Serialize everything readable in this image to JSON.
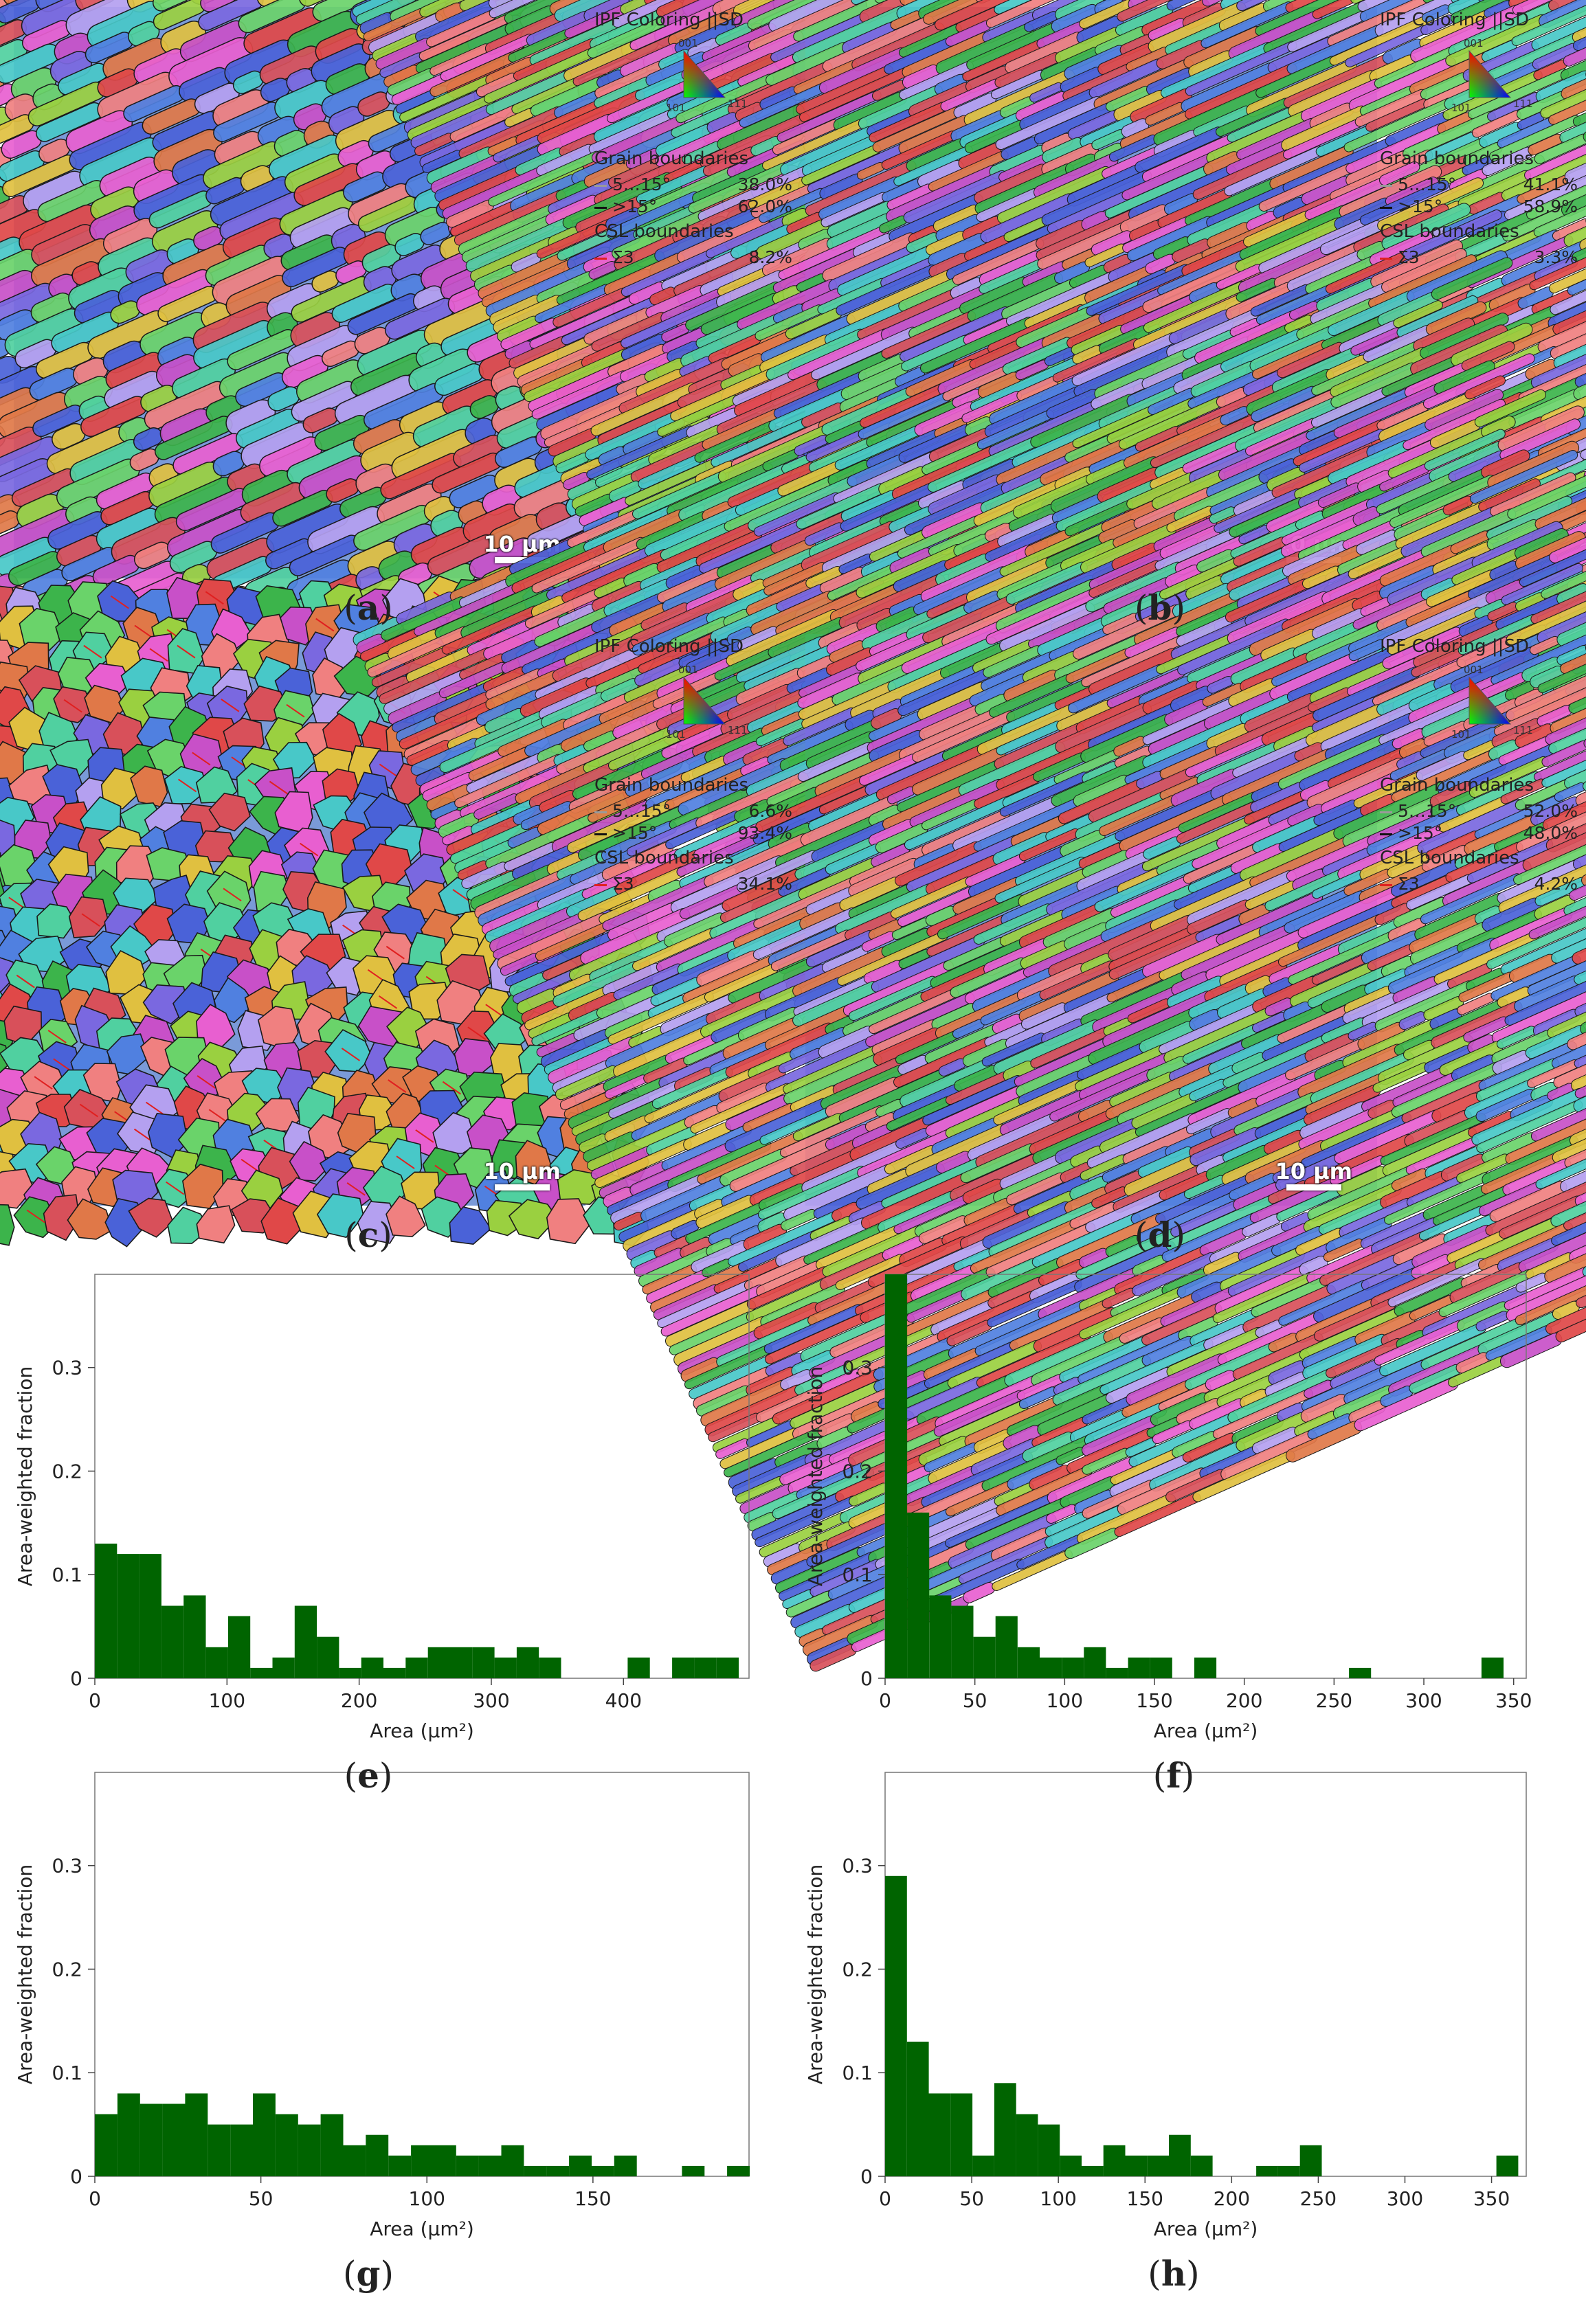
{
  "panels": [
    {
      "id": "a",
      "caption": "a",
      "legend_title": "IPF Coloring ||SD",
      "triangle": {
        "top": "001",
        "left": "101",
        "right": "111"
      },
      "gb_title": "Grain boundaries",
      "rows": [
        {
          "label": "5…15°",
          "value": "38.0%",
          "color": "#9a9a9a"
        },
        {
          "label": ">15°",
          "value": "62.0%",
          "color": "#111111"
        }
      ],
      "csl_title": "CSL boundaries",
      "csl": {
        "label": "Σ3",
        "value": "8.2%",
        "color": "#e02020"
      },
      "scale": "10 μm"
    },
    {
      "id": "b",
      "caption": "b",
      "legend_title": "IPF Coloring ||SD",
      "triangle": {
        "top": "001",
        "left": "101",
        "right": "111"
      },
      "gb_title": "Grain boundaries",
      "rows": [
        {
          "label": "5…15°",
          "value": "41.1%",
          "color": "#9a9a9a"
        },
        {
          "label": ">15°",
          "value": "58.9%",
          "color": "#111111"
        }
      ],
      "csl_title": "CSL boundaries",
      "csl": {
        "label": "Σ3",
        "value": "3.3%",
        "color": "#e02020"
      },
      "scale": "10 μm"
    },
    {
      "id": "c",
      "caption": "c",
      "legend_title": "IPF Coloring ||SD",
      "triangle": {
        "top": "001",
        "left": "101",
        "right": "111"
      },
      "gb_title": "Grain boundaries",
      "rows": [
        {
          "label": "5…15°",
          "value": "6.6%",
          "color": "#9a9a9a"
        },
        {
          "label": ">15°",
          "value": "93.4%",
          "color": "#111111"
        }
      ],
      "csl_title": "CSL boundaries",
      "csl": {
        "label": "Σ3",
        "value": "34.1%",
        "color": "#e02020"
      },
      "scale": "10 μm"
    },
    {
      "id": "d",
      "caption": "d",
      "legend_title": "IPF Coloring ||SD",
      "triangle": {
        "top": "001",
        "left": "101",
        "right": "111"
      },
      "gb_title": "Grain boundaries",
      "rows": [
        {
          "label": "5…15°",
          "value": "52.0%",
          "color": "#9a9a9a"
        },
        {
          "label": ">15°",
          "value": "48.0%",
          "color": "#111111"
        }
      ],
      "csl_title": "CSL boundaries",
      "csl": {
        "label": "Σ3",
        "value": "4.2%",
        "color": "#e02020"
      },
      "scale": "10 μm"
    }
  ],
  "chart_data": [
    {
      "type": "bar",
      "caption": "e",
      "xlabel": "Area (μm²)",
      "ylabel": "Area-weighted fraction",
      "xlim": [
        0,
        495
      ],
      "ylim": [
        0,
        0.39
      ],
      "xticks": [
        0,
        100,
        200,
        300,
        400
      ],
      "yticks": [
        0,
        0.1,
        0.2,
        0.3
      ],
      "bar_color": "#006400",
      "bin_width": 16.8,
      "bins": [
        0,
        16.8,
        33.6,
        50.4,
        67.2,
        84,
        100.8,
        117.6,
        134.4,
        151.2,
        168,
        184.8,
        201.6,
        218.4,
        235.2,
        252,
        268.8,
        285.6,
        302.4,
        319.2,
        336,
        352.8,
        369.6,
        386.4,
        403.2,
        420,
        436.8,
        453.6,
        470.4
      ],
      "values": [
        0.13,
        0.12,
        0.12,
        0.07,
        0.08,
        0.03,
        0.06,
        0.01,
        0.02,
        0.07,
        0.04,
        0.01,
        0.02,
        0.01,
        0.02,
        0.03,
        0.03,
        0.03,
        0.02,
        0.03,
        0.02,
        0,
        0,
        0,
        0.02,
        0,
        0.02,
        0.02,
        0.02
      ]
    },
    {
      "type": "bar",
      "caption": "f",
      "xlabel": "Area (μm²)",
      "ylabel": "Area-weighted fraction",
      "xlim": [
        0,
        357
      ],
      "ylim": [
        0,
        0.39
      ],
      "xticks": [
        0,
        50,
        100,
        150,
        200,
        250,
        300,
        350
      ],
      "yticks": [
        0,
        0.1,
        0.2,
        0.3
      ],
      "bar_color": "#006400",
      "bin_width": 12.3,
      "bins": [
        0,
        12.3,
        24.6,
        36.9,
        49.2,
        61.5,
        73.8,
        86.1,
        98.4,
        110.7,
        123,
        135.3,
        147.6,
        159.9,
        172.2,
        184.5,
        196.8,
        209.1,
        221.4,
        233.7,
        246,
        258.3,
        270.6,
        282.9,
        295.2,
        307.5,
        319.8,
        332.1,
        344.4
      ],
      "values": [
        0.39,
        0.16,
        0.08,
        0.07,
        0.04,
        0.06,
        0.03,
        0.02,
        0.02,
        0.03,
        0.01,
        0.02,
        0.02,
        0,
        0.02,
        0,
        0,
        0,
        0,
        0,
        0,
        0.01,
        0,
        0,
        0,
        0,
        0,
        0.02,
        0
      ]
    },
    {
      "type": "bar",
      "caption": "g",
      "xlabel": "Area (μm²)",
      "ylabel": "Area-weighted fraction",
      "xlim": [
        0,
        197
      ],
      "ylim": [
        0,
        0.39
      ],
      "xticks": [
        0,
        50,
        100,
        150
      ],
      "yticks": [
        0,
        0.1,
        0.2,
        0.3
      ],
      "bar_color": "#006400",
      "bin_width": 6.8,
      "bins": [
        0,
        6.8,
        13.6,
        20.4,
        27.2,
        34,
        40.8,
        47.6,
        54.4,
        61.2,
        68,
        74.8,
        81.6,
        88.4,
        95.2,
        102,
        108.8,
        115.6,
        122.4,
        129.2,
        136,
        142.8,
        149.6,
        156.4,
        163.2,
        170,
        176.8,
        183.6,
        190.4
      ],
      "values": [
        0.06,
        0.08,
        0.07,
        0.07,
        0.08,
        0.05,
        0.05,
        0.08,
        0.06,
        0.05,
        0.06,
        0.03,
        0.04,
        0.02,
        0.03,
        0.03,
        0.02,
        0.02,
        0.03,
        0.01,
        0.01,
        0.02,
        0.01,
        0.02,
        0,
        0,
        0.01,
        0,
        0.01
      ]
    },
    {
      "type": "bar",
      "caption": "h",
      "xlabel": "Area (μm²)",
      "ylabel": "Area-weighted fraction",
      "xlim": [
        0,
        370
      ],
      "ylim": [
        0,
        0.39
      ],
      "xticks": [
        0,
        50,
        100,
        150,
        200,
        250,
        300,
        350
      ],
      "yticks": [
        0,
        0.1,
        0.2,
        0.3
      ],
      "bar_color": "#006400",
      "bin_width": 12.6,
      "bins": [
        0,
        12.6,
        25.2,
        37.8,
        50.4,
        63,
        75.6,
        88.2,
        100.8,
        113.4,
        126,
        138.6,
        151.2,
        163.8,
        176.4,
        189,
        201.6,
        214.2,
        226.8,
        239.4,
        252,
        264.6,
        277.2,
        289.8,
        302.4,
        315,
        327.6,
        340.2,
        352.8
      ],
      "values": [
        0.29,
        0.13,
        0.08,
        0.08,
        0.02,
        0.09,
        0.06,
        0.05,
        0.02,
        0.01,
        0.03,
        0.02,
        0.02,
        0.04,
        0.02,
        0,
        0,
        0.01,
        0.01,
        0.03,
        0,
        0,
        0,
        0,
        0,
        0,
        0,
        0,
        0.02
      ]
    }
  ]
}
